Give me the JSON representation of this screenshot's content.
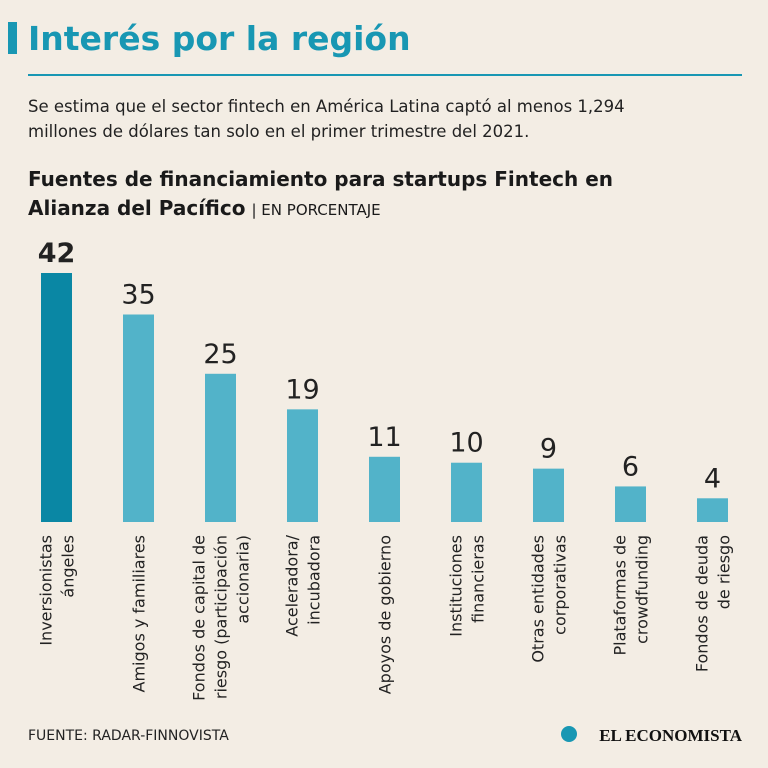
{
  "header": {
    "title": "Interés por la región",
    "subtitle_lines": [
      "Se estima que el sector fintech en América Latina captó al menos 1,294",
      "millones de dólares tan solo en el primer trimestre del 2021."
    ]
  },
  "chart_data": {
    "type": "bar",
    "title_lines": [
      "Fuentes de financiamiento para startups Fintech en",
      "Alianza del Pacífico"
    ],
    "unit_note": "| EN PORCENTAJE",
    "categories": [
      "Inversionistas\nángeles",
      "Amigos y familiares",
      "Fondos de capital de\nriesgo (participación\naccionaria)",
      "Aceleradora/\nincubadora",
      "Apoyos de gobierno",
      "Instituciones\nfinancieras",
      "Otras entidades\ncorporativas",
      "Plataformas de\ncrowdfunding",
      "Fondos de deuda\nde riesgo"
    ],
    "values": [
      42,
      35,
      25,
      19,
      11,
      10,
      9,
      6,
      4
    ],
    "colors": [
      "#0a87a4",
      "#52b3c9",
      "#52b3c9",
      "#52b3c9",
      "#52b3c9",
      "#52b3c9",
      "#52b3c9",
      "#52b3c9",
      "#52b3c9"
    ],
    "highlight_index": 0
  },
  "footer": {
    "source": "FUENTE: RADAR-FINNOVISTA",
    "brand": "EL ECONOMISTA"
  }
}
